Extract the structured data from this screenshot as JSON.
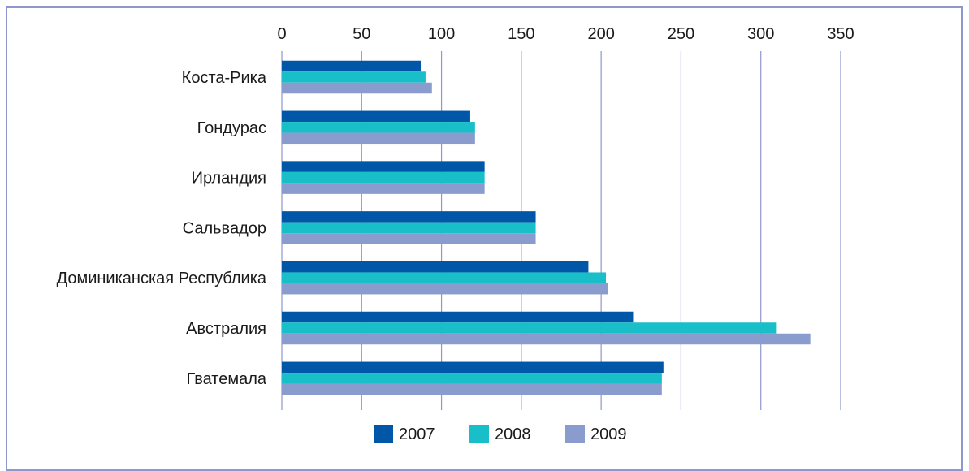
{
  "chart_data": {
    "type": "bar",
    "orientation": "horizontal",
    "categories": [
      "Коста-Рика",
      "Гондурас",
      "Ирландия",
      "Сальвадор",
      "Доминиканская Республика",
      "Австралия",
      "Гватемала"
    ],
    "series": [
      {
        "name": "2007",
        "color": "#0057a8",
        "values": [
          87,
          118,
          127,
          159,
          192,
          220,
          239
        ]
      },
      {
        "name": "2008",
        "color": "#19bfc8",
        "values": [
          90,
          121,
          127,
          159,
          203,
          310,
          238
        ]
      },
      {
        "name": "2009",
        "color": "#8a9ccd",
        "values": [
          94,
          121,
          127,
          159,
          204,
          331,
          238
        ]
      }
    ],
    "x_ticks": [
      0,
      50,
      100,
      150,
      200,
      250,
      300,
      350
    ],
    "xlim": [
      0,
      350
    ],
    "grid": "vertical",
    "x_axis_position": "top",
    "legend_position": "bottom-center",
    "colors": {
      "frame": "#8f97cc",
      "grid": "#8f97cc"
    }
  }
}
